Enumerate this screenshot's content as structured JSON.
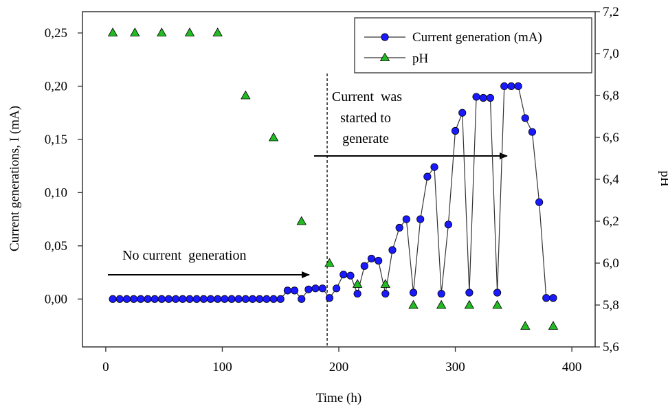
{
  "chart_data": {
    "type": "line",
    "xlabel": "Time (h)",
    "ylabel": "Current generations, I (mA)",
    "y2label": "pH",
    "xlim": [
      -20,
      420
    ],
    "ylim": [
      -0.045,
      0.27
    ],
    "y2lim": [
      5.6,
      7.2
    ],
    "x_ticks": [
      0,
      100,
      200,
      300,
      400
    ],
    "x_tick_labels": [
      "0",
      "100",
      "200",
      "300",
      "400"
    ],
    "y_ticks": [
      0.0,
      0.05,
      0.1,
      0.15,
      0.2,
      0.25
    ],
    "y_tick_labels": [
      "0,00",
      "0,05",
      "0,10",
      "0,15",
      "0,20",
      "0,25"
    ],
    "y2_ticks": [
      5.6,
      5.8,
      6.0,
      6.2,
      6.4,
      6.6,
      6.8,
      7.0,
      7.2
    ],
    "y2_tick_labels": [
      "5,6",
      "5,8",
      "6,0",
      "6,2",
      "6,4",
      "6,6",
      "6,8",
      "7,0",
      "7,2"
    ],
    "grid": false,
    "legend_position": "top-right",
    "colors": {
      "current": "#1a1aff",
      "ph": "#22bb22",
      "line": "#333333"
    },
    "series": [
      {
        "name": "Current generation (mA)",
        "axis": "left",
        "marker": "circle",
        "x": [
          6,
          12,
          18,
          24,
          30,
          36,
          42,
          48,
          54,
          60,
          66,
          72,
          78,
          84,
          90,
          96,
          102,
          108,
          114,
          120,
          126,
          132,
          138,
          144,
          150,
          156,
          162,
          168,
          174,
          180,
          186,
          192,
          198,
          204,
          210,
          216,
          222,
          228,
          234,
          240,
          246,
          252,
          258,
          264,
          270,
          276,
          282,
          288,
          294,
          300,
          306,
          312,
          318,
          324,
          330,
          336,
          342,
          348,
          354,
          360,
          366,
          372,
          378,
          384
        ],
        "y": [
          0,
          0,
          0,
          0,
          0,
          0,
          0,
          0,
          0,
          0,
          0,
          0,
          0,
          0,
          0,
          0,
          0,
          0,
          0,
          0,
          0,
          0,
          0,
          0,
          0,
          0.008,
          0.008,
          0,
          0.009,
          0.01,
          0.01,
          0.001,
          0.01,
          0.023,
          0.022,
          0.005,
          0.031,
          0.038,
          0.036,
          0.005,
          0.046,
          0.067,
          0.075,
          0.006,
          0.075,
          0.115,
          0.124,
          0.005,
          0.07,
          0.158,
          0.175,
          0.006,
          0.19,
          0.189,
          0.189,
          0.006,
          0.2,
          0.2,
          0.2,
          0.17,
          0.157,
          0.091,
          0.001,
          0.001
        ]
      },
      {
        "name": "pH",
        "axis": "right",
        "marker": "triangle",
        "x": [
          6,
          25,
          48,
          72,
          96,
          120,
          144,
          168,
          192,
          216,
          240,
          264,
          288,
          312,
          336,
          360,
          384
        ],
        "y": [
          7.1,
          7.1,
          7.1,
          7.1,
          7.1,
          6.8,
          6.6,
          6.2,
          6.0,
          5.9,
          5.9,
          5.8,
          5.8,
          5.8,
          5.8,
          5.7,
          5.7
        ]
      }
    ],
    "reference_line": {
      "x": 190
    },
    "annotations": [
      {
        "text": "No current  generation"
      },
      {
        "lines": [
          "Current  was",
          "started to",
          "generate"
        ]
      }
    ]
  }
}
